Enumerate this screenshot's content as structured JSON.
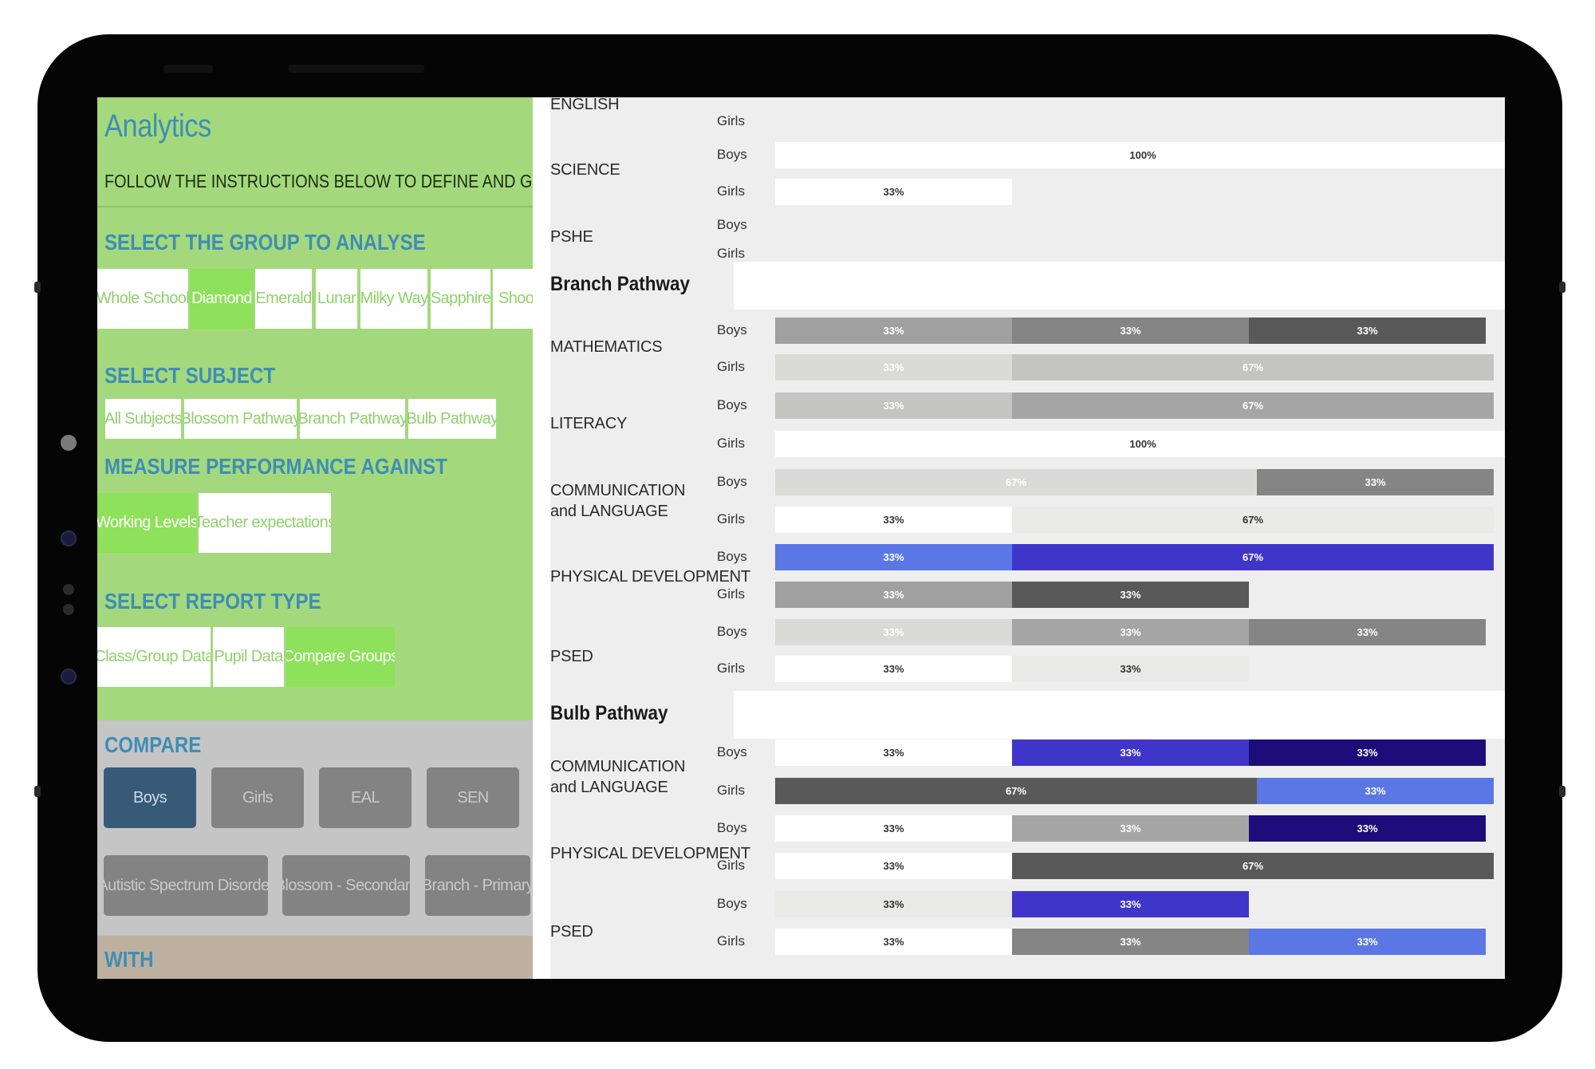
{
  "app": {
    "title": "Analytics",
    "instructions": "FOLLOW THE INSTRUCTIONS BELOW TO DEFINE AND GEN"
  },
  "group_section": {
    "heading": "SELECT THE GROUP TO ANALYSE",
    "options": [
      "Whole School",
      "Diamond",
      "Emerald",
      "Lunar",
      "Milky Way",
      "Sapphire",
      "Shoo"
    ],
    "selected": "Diamond"
  },
  "subject_section": {
    "heading": "SELECT SUBJECT",
    "options": [
      "All Subjects",
      "Blossom Pathway",
      "Branch Pathway",
      "Bulb Pathway"
    ]
  },
  "measure_section": {
    "heading": "MEASURE PERFORMANCE AGAINST",
    "options": [
      "Working Levels",
      "Teacher expectations"
    ],
    "selected": "Working Levels"
  },
  "report_section": {
    "heading": "SELECT REPORT TYPE",
    "options": [
      "Class/Group Data",
      "Pupil Data",
      "Compare Groups"
    ],
    "selected": "Compare Groups"
  },
  "compare_section": {
    "heading": "COMPARE",
    "options": [
      "Boys",
      "Girls",
      "EAL",
      "SEN",
      "Autistic Spectrum Disorder",
      "Blossom - Secondary",
      "Branch - Primary"
    ],
    "selected": "Boys"
  },
  "with_section": {
    "heading": "WITH"
  },
  "report": {
    "partial_top": [
      {
        "subject": "ENGLISH",
        "rows": [
          {
            "group": "Girls",
            "segments": []
          }
        ]
      },
      {
        "subject": "SCIENCE",
        "rows": [
          {
            "group": "Boys",
            "segments": [
              {
                "label": "100%",
                "value": 100,
                "color": "#ffffff"
              }
            ]
          },
          {
            "group": "Girls",
            "segments": [
              {
                "label": "33%",
                "value": 33,
                "color": "#ffffff"
              }
            ]
          }
        ]
      },
      {
        "subject": "PSHE",
        "rows": [
          {
            "group": "Boys",
            "segments": []
          },
          {
            "group": "Girls",
            "segments": []
          }
        ]
      }
    ],
    "sections": [
      {
        "heading": "Branch Pathway",
        "subjects": [
          {
            "subject": "MATHEMATICS",
            "rows": [
              {
                "group": "Boys",
                "segments": [
                  {
                    "label": "33%",
                    "value": 33,
                    "color": "#a0a0a0"
                  },
                  {
                    "label": "33%",
                    "value": 33,
                    "color": "#858585"
                  },
                  {
                    "label": "33%",
                    "value": 33,
                    "color": "#595959"
                  }
                ]
              },
              {
                "group": "Girls",
                "segments": [
                  {
                    "label": "33%",
                    "value": 33,
                    "color": "#dadad8"
                  },
                  {
                    "label": "67%",
                    "value": 67,
                    "color": "#c4c4c2"
                  }
                ]
              }
            ]
          },
          {
            "subject": "LITERACY",
            "rows": [
              {
                "group": "Boys",
                "segments": [
                  {
                    "label": "33%",
                    "value": 33,
                    "color": "#c4c4c2"
                  },
                  {
                    "label": "67%",
                    "value": 67,
                    "color": "#a5a5a5"
                  }
                ]
              },
              {
                "group": "Girls",
                "segments": [
                  {
                    "label": "100%",
                    "value": 100,
                    "color": "#ffffff"
                  }
                ]
              }
            ]
          },
          {
            "subject": "COMMUNICATION and LANGUAGE",
            "rows": [
              {
                "group": "Boys",
                "segments": [
                  {
                    "label": "67%",
                    "value": 67,
                    "color": "#dadad8"
                  },
                  {
                    "label": "33%",
                    "value": 33,
                    "color": "#858585"
                  }
                ]
              },
              {
                "group": "Girls",
                "segments": [
                  {
                    "label": "33%",
                    "value": 33,
                    "color": "#ffffff"
                  },
                  {
                    "label": "67%",
                    "value": 67,
                    "color": "#e9e9e7"
                  }
                ]
              }
            ]
          },
          {
            "subject": "PHYSICAL DEVELOPMENT",
            "rows": [
              {
                "group": "Boys",
                "segments": [
                  {
                    "label": "33%",
                    "value": 33,
                    "color": "#5b77e6"
                  },
                  {
                    "label": "67%",
                    "value": 67,
                    "color": "#3f36c9"
                  }
                ]
              },
              {
                "group": "Girls",
                "segments": [
                  {
                    "label": "33%",
                    "value": 33,
                    "color": "#a0a0a0"
                  },
                  {
                    "label": "33%",
                    "value": 33,
                    "color": "#595959"
                  }
                ]
              }
            ]
          },
          {
            "subject": "PSED",
            "rows": [
              {
                "group": "Boys",
                "segments": [
                  {
                    "label": "33%",
                    "value": 33,
                    "color": "#dadad8"
                  },
                  {
                    "label": "33%",
                    "value": 33,
                    "color": "#a5a5a5"
                  },
                  {
                    "label": "33%",
                    "value": 33,
                    "color": "#858585"
                  }
                ]
              },
              {
                "group": "Girls",
                "segments": [
                  {
                    "label": "33%",
                    "value": 33,
                    "color": "#ffffff"
                  },
                  {
                    "label": "33%",
                    "value": 33,
                    "color": "#e9e9e7"
                  }
                ]
              }
            ]
          }
        ]
      },
      {
        "heading": "Bulb Pathway",
        "subjects": [
          {
            "subject": "COMMUNICATION and LANGUAGE",
            "rows": [
              {
                "group": "Boys",
                "segments": [
                  {
                    "label": "33%",
                    "value": 33,
                    "color": "#ffffff"
                  },
                  {
                    "label": "33%",
                    "value": 33,
                    "color": "#3f36c9"
                  },
                  {
                    "label": "33%",
                    "value": 33,
                    "color": "#1d0c7a"
                  }
                ]
              },
              {
                "group": "Girls",
                "segments": [
                  {
                    "label": "67%",
                    "value": 67,
                    "color": "#595959"
                  },
                  {
                    "label": "33%",
                    "value": 33,
                    "color": "#5b77e6"
                  }
                ]
              }
            ]
          },
          {
            "subject": "PHYSICAL DEVELOPMENT",
            "rows": [
              {
                "group": "Boys",
                "segments": [
                  {
                    "label": "33%",
                    "value": 33,
                    "color": "#ffffff"
                  },
                  {
                    "label": "33%",
                    "value": 33,
                    "color": "#a5a5a5"
                  },
                  {
                    "label": "33%",
                    "value": 33,
                    "color": "#1d0c7a"
                  }
                ]
              },
              {
                "group": "Girls",
                "segments": [
                  {
                    "label": "33%",
                    "value": 33,
                    "color": "#ffffff"
                  },
                  {
                    "label": "67%",
                    "value": 67,
                    "color": "#595959"
                  }
                ]
              }
            ]
          },
          {
            "subject": "PSED",
            "rows": [
              {
                "group": "Boys",
                "segments": [
                  {
                    "label": "33%",
                    "value": 33,
                    "color": "#e9e9e7"
                  },
                  {
                    "label": "33%",
                    "value": 33,
                    "color": "#3f36c9"
                  }
                ]
              },
              {
                "group": "Girls",
                "segments": [
                  {
                    "label": "33%",
                    "value": 33,
                    "color": "#ffffff"
                  },
                  {
                    "label": "33%",
                    "value": 33,
                    "color": "#858585"
                  },
                  {
                    "label": "33%",
                    "value": 33,
                    "color": "#5b77e6"
                  }
                ]
              }
            ]
          }
        ]
      }
    ]
  },
  "colors": {
    "panel_green": "#a3d97c",
    "heading_blue": "#3f8db6",
    "selected_green": "#8ee15a",
    "compare_selected": "#375a78"
  }
}
